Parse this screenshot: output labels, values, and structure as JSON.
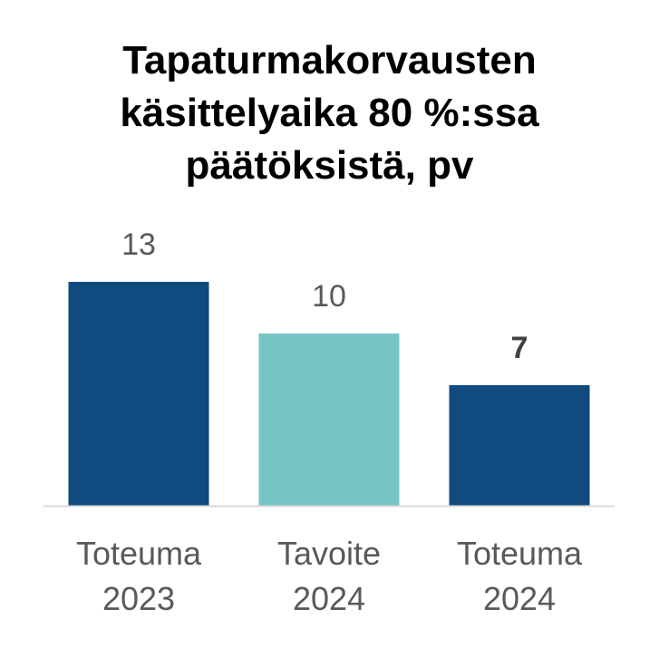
{
  "chart_data": {
    "type": "bar",
    "title_lines": [
      "Tapaturmakorvausten",
      "käsittelyaika 80 %:ssa",
      "päätöksistä, pv"
    ],
    "categories": [
      [
        "Toteuma",
        "2023"
      ],
      [
        "Tavoite",
        "2024"
      ],
      [
        "Toteuma",
        "2024"
      ]
    ],
    "values": [
      13,
      10,
      7
    ],
    "value_labels": [
      "13",
      "10",
      "7"
    ],
    "value_label_bold": [
      false,
      false,
      true
    ],
    "bar_colors": [
      "#104a7e",
      "#76c4c3",
      "#104a7e"
    ],
    "ylim": [
      0,
      13
    ],
    "xlabel": "",
    "ylabel": "",
    "grid": false,
    "legend": "none"
  },
  "colors": {
    "axis_line": "#d9d9d9",
    "label_text": "#595959",
    "title_text": "#000000"
  }
}
